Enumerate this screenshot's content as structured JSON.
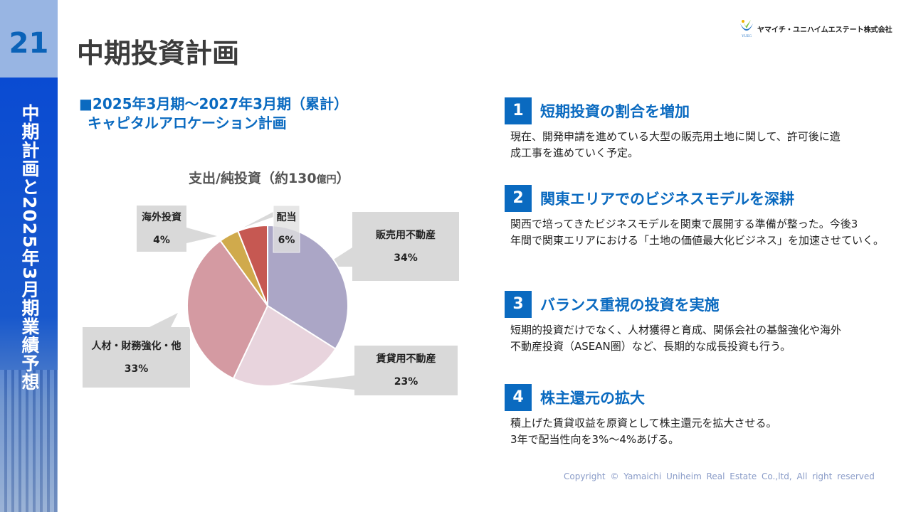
{
  "page_number": "21",
  "sidebar_text": "中期計画と2025年3月期業績予想",
  "title": "中期投資計画",
  "logo": {
    "text": "ヤマイチ・ユニハイムエステート株式会社",
    "mark": "YUEG"
  },
  "subtitle": {
    "line1": "■2025年3月期～2027年3月期（累計）",
    "line2": "キャピタルアロケーション計画"
  },
  "chart_data": {
    "type": "pie",
    "title": "支出/純投資（約130",
    "title_unit": "億円",
    "title_close": "）",
    "slices": [
      {
        "label": "販売用不動産",
        "value": 34,
        "display": "34%",
        "color": "#aba6c6"
      },
      {
        "label": "賃貸用不動産",
        "value": 23,
        "display": "23%",
        "color": "#e8d4dd"
      },
      {
        "label": "人材・財務強化・他",
        "value": 33,
        "display": "33%",
        "color": "#d49aa2"
      },
      {
        "label": "海外投資",
        "value": 4,
        "display": "4%",
        "color": "#d0aa4c"
      },
      {
        "label": "配当",
        "value": 6,
        "display": "6%",
        "color": "#c65852"
      }
    ]
  },
  "points": [
    {
      "num": "1",
      "heading": "短期投資の割合を増加",
      "body1": "現在、開発申請を進めている大型の販売用土地に関して、許可後に造",
      "body2": "成工事を進めていく予定。"
    },
    {
      "num": "2",
      "heading": "関東エリアでのビジネスモデルを深耕",
      "body1": "関西で培ってきたビジネスモデルを関東で展開する準備が整った。今後3",
      "body2": "年間で関東エリアにおける「土地の価値最大化ビジネス」を加速させていく。"
    },
    {
      "num": "3",
      "heading": "バランス重視の投資を実施",
      "body1": "短期的投資だけでなく、人材獲得と育成、関係会社の基盤強化や海外",
      "body2": "不動産投資（ASEAN圏）など、長期的な成長投資も行う。"
    },
    {
      "num": "4",
      "heading": "株主還元の拡大",
      "body1": "積上げた賃貸収益を原資として株主還元を拡大させる。",
      "body2": "3年で配当性向を3%～4%あげる。"
    }
  ],
  "copyright": "Copyright © Yamaichi Uniheim Real Estate Co.,ltd, All right reserved"
}
